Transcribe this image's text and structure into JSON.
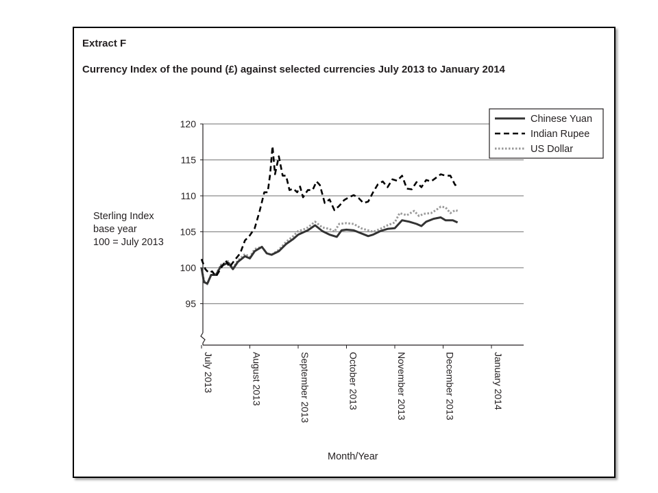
{
  "extract_label": "Extract F",
  "chart_data": {
    "type": "line",
    "title": "Currency Index of the pound (£) against selected currencies July 2013 to January 2014",
    "ylabel": [
      "Sterling Index",
      "base year",
      "100 = July 2013"
    ],
    "xlabel": "Month/Year",
    "ylim": [
      90,
      120
    ],
    "yticks": [
      95,
      100,
      105,
      110,
      115,
      120
    ],
    "grid": true,
    "legend_position": "top-right",
    "xticks": [
      "July 2013",
      "August 2013",
      "September 2013",
      "October 2013",
      "November 2013",
      "December 2013",
      "January 2014"
    ],
    "x_month_offsets": [
      0,
      1,
      2,
      3,
      4,
      5,
      6
    ],
    "series": [
      {
        "name": "Chinese Yuan",
        "style": "solid",
        "color": "#333333",
        "points": [
          [
            0.0,
            100.0
          ],
          [
            0.05,
            98.0
          ],
          [
            0.12,
            97.8
          ],
          [
            0.2,
            99.0
          ],
          [
            0.3,
            99.0
          ],
          [
            0.4,
            100.2
          ],
          [
            0.55,
            100.7
          ],
          [
            0.65,
            99.8
          ],
          [
            0.75,
            100.8
          ],
          [
            0.9,
            101.6
          ],
          [
            1.0,
            101.3
          ],
          [
            1.1,
            102.3
          ],
          [
            1.25,
            102.9
          ],
          [
            1.35,
            102.0
          ],
          [
            1.45,
            101.8
          ],
          [
            1.6,
            102.3
          ],
          [
            1.75,
            103.3
          ],
          [
            1.9,
            104.0
          ],
          [
            2.0,
            104.6
          ],
          [
            2.1,
            104.9
          ],
          [
            2.2,
            105.2
          ],
          [
            2.35,
            105.9
          ],
          [
            2.5,
            105.1
          ],
          [
            2.65,
            104.6
          ],
          [
            2.8,
            104.3
          ],
          [
            2.9,
            105.2
          ],
          [
            3.0,
            105.3
          ],
          [
            3.15,
            105.2
          ],
          [
            3.3,
            104.8
          ],
          [
            3.45,
            104.4
          ],
          [
            3.55,
            104.6
          ],
          [
            3.7,
            105.1
          ],
          [
            3.85,
            105.4
          ],
          [
            4.0,
            105.5
          ],
          [
            4.15,
            106.6
          ],
          [
            4.3,
            106.4
          ],
          [
            4.45,
            106.1
          ],
          [
            4.55,
            105.8
          ],
          [
            4.65,
            106.4
          ],
          [
            4.8,
            106.8
          ],
          [
            4.95,
            107.0
          ],
          [
            5.05,
            106.6
          ],
          [
            5.2,
            106.6
          ],
          [
            5.3,
            106.3
          ]
        ]
      },
      {
        "name": "Indian Rupee",
        "style": "dashed",
        "color": "#000000",
        "points": [
          [
            0.0,
            101.2
          ],
          [
            0.08,
            99.8
          ],
          [
            0.15,
            99.3
          ],
          [
            0.22,
            99.5
          ],
          [
            0.3,
            98.8
          ],
          [
            0.4,
            99.9
          ],
          [
            0.5,
            101.0
          ],
          [
            0.58,
            100.1
          ],
          [
            0.68,
            101.0
          ],
          [
            0.8,
            102.0
          ],
          [
            0.9,
            103.8
          ],
          [
            1.0,
            104.5
          ],
          [
            1.1,
            105.5
          ],
          [
            1.2,
            107.8
          ],
          [
            1.3,
            110.5
          ],
          [
            1.37,
            110.5
          ],
          [
            1.42,
            113.0
          ],
          [
            1.47,
            116.9
          ],
          [
            1.52,
            113.0
          ],
          [
            1.6,
            115.5
          ],
          [
            1.68,
            112.8
          ],
          [
            1.75,
            112.8
          ],
          [
            1.82,
            110.8
          ],
          [
            1.9,
            111.0
          ],
          [
            1.98,
            110.5
          ],
          [
            2.04,
            111.3
          ],
          [
            2.1,
            109.8
          ],
          [
            2.2,
            110.8
          ],
          [
            2.3,
            110.8
          ],
          [
            2.38,
            112.0
          ],
          [
            2.45,
            111.5
          ],
          [
            2.55,
            109.0
          ],
          [
            2.65,
            109.5
          ],
          [
            2.75,
            108.0
          ],
          [
            2.85,
            108.6
          ],
          [
            2.95,
            109.4
          ],
          [
            3.05,
            109.8
          ],
          [
            3.15,
            110.1
          ],
          [
            3.25,
            109.7
          ],
          [
            3.35,
            109.0
          ],
          [
            3.45,
            109.2
          ],
          [
            3.55,
            110.5
          ],
          [
            3.65,
            111.6
          ],
          [
            3.75,
            112.0
          ],
          [
            3.85,
            111.2
          ],
          [
            3.95,
            112.3
          ],
          [
            4.05,
            112.1
          ],
          [
            4.15,
            112.8
          ],
          [
            4.25,
            111.0
          ],
          [
            4.35,
            110.9
          ],
          [
            4.45,
            111.9
          ],
          [
            4.55,
            111.2
          ],
          [
            4.65,
            112.2
          ],
          [
            4.75,
            112.0
          ],
          [
            4.85,
            112.5
          ],
          [
            4.95,
            113.0
          ],
          [
            5.05,
            112.8
          ],
          [
            5.15,
            112.8
          ],
          [
            5.25,
            111.5
          ],
          [
            5.3,
            111.6
          ]
        ]
      },
      {
        "name": "US Dollar",
        "style": "dotted",
        "color": "#999999",
        "points": [
          [
            0.0,
            100.1
          ],
          [
            0.05,
            98.2
          ],
          [
            0.12,
            97.7
          ],
          [
            0.2,
            99.1
          ],
          [
            0.3,
            99.1
          ],
          [
            0.4,
            100.4
          ],
          [
            0.55,
            100.9
          ],
          [
            0.65,
            99.9
          ],
          [
            0.75,
            101.0
          ],
          [
            0.9,
            101.9
          ],
          [
            1.0,
            101.5
          ],
          [
            1.1,
            102.6
          ],
          [
            1.25,
            102.9
          ],
          [
            1.35,
            102.0
          ],
          [
            1.45,
            101.8
          ],
          [
            1.6,
            102.5
          ],
          [
            1.75,
            103.6
          ],
          [
            1.9,
            104.4
          ],
          [
            2.0,
            105.1
          ],
          [
            2.1,
            105.3
          ],
          [
            2.2,
            105.6
          ],
          [
            2.35,
            106.4
          ],
          [
            2.5,
            105.6
          ],
          [
            2.65,
            105.4
          ],
          [
            2.75,
            105.0
          ],
          [
            2.85,
            106.1
          ],
          [
            3.0,
            106.2
          ],
          [
            3.15,
            106.1
          ],
          [
            3.3,
            105.5
          ],
          [
            3.45,
            105.2
          ],
          [
            3.55,
            105.0
          ],
          [
            3.7,
            105.4
          ],
          [
            3.85,
            105.9
          ],
          [
            4.0,
            106.3
          ],
          [
            4.1,
            107.6
          ],
          [
            4.25,
            107.3
          ],
          [
            4.4,
            107.9
          ],
          [
            4.5,
            107.2
          ],
          [
            4.6,
            107.5
          ],
          [
            4.75,
            107.6
          ],
          [
            4.85,
            108.0
          ],
          [
            4.95,
            108.5
          ],
          [
            5.05,
            108.4
          ],
          [
            5.15,
            107.6
          ],
          [
            5.25,
            108.0
          ],
          [
            5.3,
            107.9
          ]
        ]
      }
    ]
  }
}
